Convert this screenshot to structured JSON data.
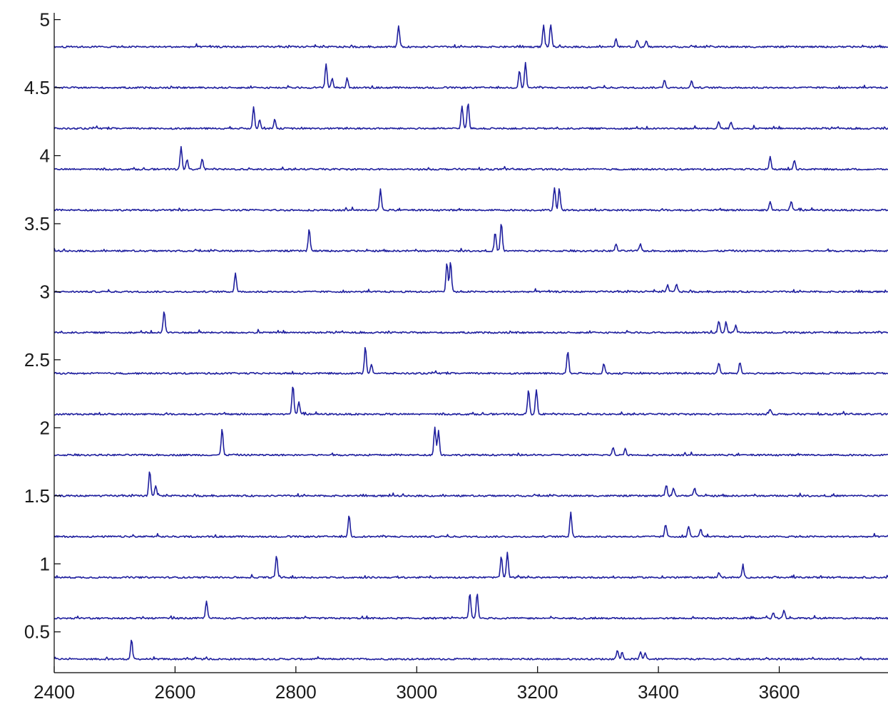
{
  "chart_data": {
    "type": "line",
    "title": "",
    "xlabel": "",
    "ylabel": "",
    "xlim": [
      2400,
      3780
    ],
    "ylim": [
      0.2,
      5.05
    ],
    "grid": false,
    "legend": "none",
    "line_color": "#1f1f9e",
    "x_ticks": [
      2400,
      2600,
      2800,
      3000,
      3200,
      3400,
      3600
    ],
    "y_ticks": [
      0.5,
      1,
      1.5,
      2,
      2.5,
      3,
      3.5,
      4,
      4.5,
      5
    ],
    "x_tick_labels": [
      "2400",
      "2600",
      "2800",
      "3000",
      "3200",
      "3400",
      "3600"
    ],
    "y_tick_labels": [
      "0.5",
      "1",
      "1.5",
      "2",
      "2.5",
      "3",
      "3.5",
      "4",
      "4.5",
      "5"
    ],
    "series": [
      {
        "baseline": 0.3,
        "peaks": [
          [
            2528,
            0.14
          ],
          [
            3332,
            0.07
          ],
          [
            3340,
            0.05
          ],
          [
            3370,
            0.04
          ],
          [
            3378,
            0.05
          ]
        ]
      },
      {
        "baseline": 0.6,
        "peaks": [
          [
            2652,
            0.13
          ],
          [
            3088,
            0.18
          ],
          [
            3100,
            0.18
          ],
          [
            3590,
            0.04
          ],
          [
            3608,
            0.06
          ]
        ]
      },
      {
        "baseline": 0.9,
        "peaks": [
          [
            2768,
            0.16
          ],
          [
            3140,
            0.15
          ],
          [
            3150,
            0.18
          ],
          [
            3500,
            0.04
          ],
          [
            3540,
            0.08
          ]
        ]
      },
      {
        "baseline": 1.2,
        "peaks": [
          [
            2888,
            0.16
          ],
          [
            3255,
            0.18
          ],
          [
            3412,
            0.09
          ],
          [
            3450,
            0.08
          ],
          [
            3470,
            0.06
          ]
        ]
      },
      {
        "baseline": 1.5,
        "peaks": [
          [
            2558,
            0.18
          ],
          [
            2568,
            0.07
          ],
          [
            3413,
            0.08
          ],
          [
            3425,
            0.06
          ],
          [
            3460,
            0.06
          ]
        ]
      },
      {
        "baseline": 1.8,
        "peaks": [
          [
            2678,
            0.19
          ],
          [
            3030,
            0.21
          ],
          [
            3036,
            0.18
          ],
          [
            3325,
            0.05
          ],
          [
            3345,
            0.05
          ]
        ]
      },
      {
        "baseline": 2.1,
        "peaks": [
          [
            2795,
            0.21
          ],
          [
            2805,
            0.09
          ],
          [
            3185,
            0.18
          ],
          [
            3198,
            0.18
          ],
          [
            3585,
            0.04
          ]
        ]
      },
      {
        "baseline": 2.4,
        "peaks": [
          [
            2915,
            0.2
          ],
          [
            2925,
            0.07
          ],
          [
            3250,
            0.16
          ],
          [
            3310,
            0.07
          ],
          [
            3500,
            0.08
          ],
          [
            3535,
            0.08
          ]
        ]
      },
      {
        "baseline": 2.7,
        "peaks": [
          [
            2582,
            0.16
          ],
          [
            3500,
            0.09
          ],
          [
            3512,
            0.08
          ],
          [
            3528,
            0.05
          ]
        ]
      },
      {
        "baseline": 3.0,
        "peaks": [
          [
            2700,
            0.14
          ],
          [
            3050,
            0.22
          ],
          [
            3056,
            0.22
          ],
          [
            3415,
            0.05
          ],
          [
            3430,
            0.06
          ]
        ]
      },
      {
        "baseline": 3.3,
        "peaks": [
          [
            2822,
            0.16
          ],
          [
            3130,
            0.13
          ],
          [
            3140,
            0.21
          ],
          [
            3330,
            0.05
          ],
          [
            3370,
            0.05
          ]
        ]
      },
      {
        "baseline": 3.6,
        "peaks": [
          [
            2940,
            0.15
          ],
          [
            3228,
            0.17
          ],
          [
            3236,
            0.16
          ],
          [
            3585,
            0.06
          ],
          [
            3620,
            0.06
          ]
        ]
      },
      {
        "baseline": 3.9,
        "peaks": [
          [
            2610,
            0.17
          ],
          [
            2620,
            0.07
          ],
          [
            2645,
            0.08
          ],
          [
            3585,
            0.09
          ],
          [
            3625,
            0.07
          ]
        ]
      },
      {
        "baseline": 4.2,
        "peaks": [
          [
            2730,
            0.16
          ],
          [
            2740,
            0.07
          ],
          [
            2765,
            0.07
          ],
          [
            3075,
            0.17
          ],
          [
            3085,
            0.19
          ],
          [
            3500,
            0.05
          ],
          [
            3520,
            0.05
          ]
        ]
      },
      {
        "baseline": 4.5,
        "peaks": [
          [
            2850,
            0.18
          ],
          [
            2860,
            0.07
          ],
          [
            2885,
            0.07
          ],
          [
            3170,
            0.13
          ],
          [
            3180,
            0.18
          ],
          [
            3410,
            0.06
          ],
          [
            3455,
            0.05
          ]
        ]
      },
      {
        "baseline": 4.8,
        "peaks": [
          [
            2970,
            0.16
          ],
          [
            3210,
            0.16
          ],
          [
            3222,
            0.16
          ],
          [
            3330,
            0.06
          ],
          [
            3365,
            0.05
          ],
          [
            3380,
            0.04
          ]
        ]
      }
    ]
  }
}
